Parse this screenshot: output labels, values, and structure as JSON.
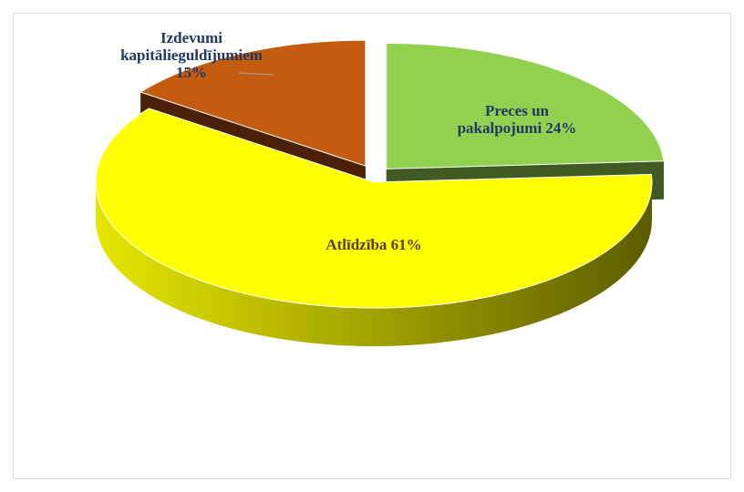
{
  "chart_data": {
    "type": "pie",
    "style": "3d-exploded",
    "title": "",
    "slices": [
      {
        "name": "Preces un pakalpojumi",
        "value": 24,
        "label_lines": [
          "Preces un",
          "pakalpojumi 24%"
        ],
        "color": "#92d050",
        "side_color": "#3f5a23",
        "text_color": "#1f3864"
      },
      {
        "name": "Atlīdzība",
        "value": 61,
        "label_lines": [
          "Atlīdzība 61%"
        ],
        "color": "#ffff00",
        "side_color": "#7f7f00",
        "text_color": "#5a3a00"
      },
      {
        "name": "Izdevumi kapitālieguldījumiem",
        "value": 15,
        "label_lines": [
          "Izdevumi",
          "kapitālieguldījumiem",
          "15%"
        ],
        "color": "#c55a11",
        "side_color": "#4a2106",
        "text_color": "#1f3864"
      }
    ]
  }
}
